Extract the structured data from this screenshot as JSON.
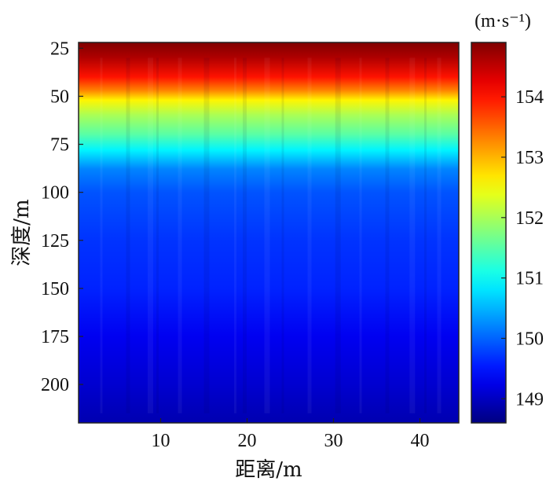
{
  "chart_data": {
    "type": "heatmap",
    "xlabel": "距离/m",
    "ylabel": "深度/m",
    "colorbar_label": "(m·s⁻¹)",
    "xlim": [
      0.5,
      44.5
    ],
    "ylim": [
      220,
      22
    ],
    "y_inverted": true,
    "x_ticks": [
      10,
      20,
      30,
      40
    ],
    "y_ticks": [
      25,
      50,
      75,
      100,
      125,
      150,
      175,
      200
    ],
    "colorbar_ticks": [
      149,
      150,
      151,
      152,
      153,
      154
    ],
    "colorbar_range": [
      148.6,
      154.9
    ],
    "colormap": "jet",
    "colors": {
      "min": "#0a1e96",
      "max": "#5a0a0a"
    },
    "depth_profile": [
      {
        "depth": 22,
        "value": 154.9
      },
      {
        "depth": 30,
        "value": 154.6
      },
      {
        "depth": 40,
        "value": 154.0
      },
      {
        "depth": 47,
        "value": 153.3
      },
      {
        "depth": 52,
        "value": 152.6
      },
      {
        "depth": 60,
        "value": 152.0
      },
      {
        "depth": 70,
        "value": 151.5
      },
      {
        "depth": 78,
        "value": 150.9
      },
      {
        "depth": 88,
        "value": 150.2
      },
      {
        "depth": 100,
        "value": 149.9
      },
      {
        "depth": 125,
        "value": 149.7
      },
      {
        "depth": 150,
        "value": 149.6
      },
      {
        "depth": 175,
        "value": 149.3
      },
      {
        "depth": 200,
        "value": 149.1
      },
      {
        "depth": 220,
        "value": 148.9
      }
    ]
  }
}
